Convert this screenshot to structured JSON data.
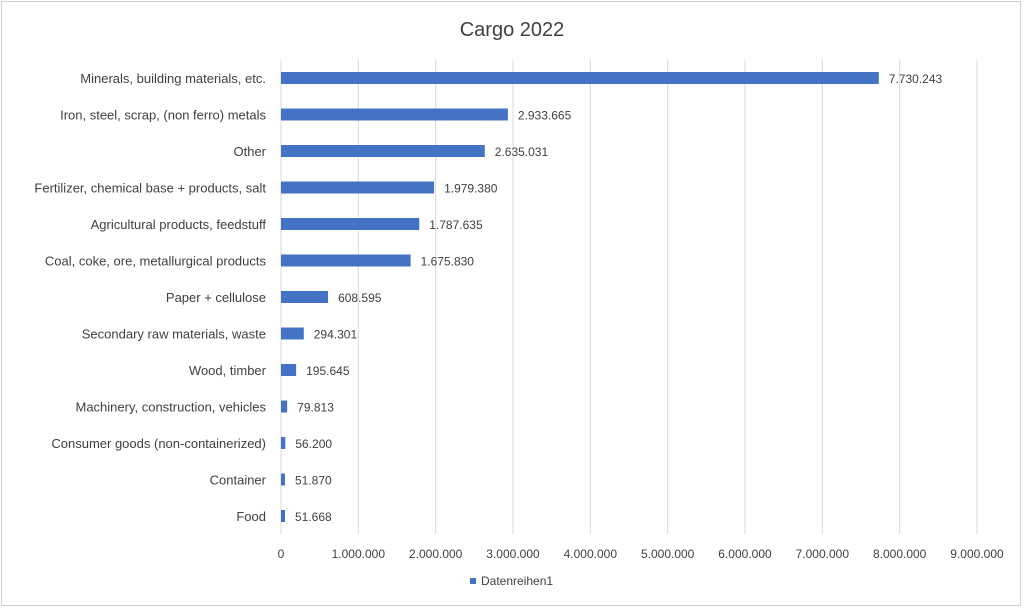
{
  "chart_data": {
    "type": "bar",
    "orientation": "horizontal",
    "title": "Cargo 2022",
    "xlabel": "",
    "ylabel": "",
    "categories": [
      "Minerals, building materials, etc.",
      "Iron, steel, scrap, (non ferro) metals",
      "Other",
      "Fertilizer, chemical base + products, salt",
      "Agricultural products, feedstuff",
      "Coal, coke, ore, metallurgical products",
      "Paper + cellulose",
      "Secondary raw materials, waste",
      "Wood, timber",
      "Machinery, construction, vehicles",
      "Consumer goods (non-containerized)",
      "Container",
      "Food"
    ],
    "series": [
      {
        "name": "Datenreihen1",
        "color": "#4472c4",
        "values": [
          7730243,
          2933665,
          2635031,
          1979380,
          1787635,
          1675830,
          608595,
          294301,
          195645,
          79813,
          56200,
          51870,
          51668
        ],
        "labels": [
          "7.730.243",
          "2.933.665",
          "2.635.031",
          "1.979.380",
          "1.787.635",
          "1.675.830",
          "608.595",
          "294.301",
          "195.645",
          "79.813",
          "56.200",
          "51.870",
          "51.668"
        ]
      }
    ],
    "xlim": [
      0,
      9000000
    ],
    "x_ticks": [
      0,
      1000000,
      2000000,
      3000000,
      4000000,
      5000000,
      6000000,
      7000000,
      8000000,
      9000000
    ],
    "x_tick_labels": [
      "0",
      "1.000.000",
      "2.000.000",
      "3.000.000",
      "4.000.000",
      "5.000.000",
      "6.000.000",
      "7.000.000",
      "8.000.000",
      "9.000.000"
    ],
    "grid": true,
    "legend": "bottom"
  }
}
